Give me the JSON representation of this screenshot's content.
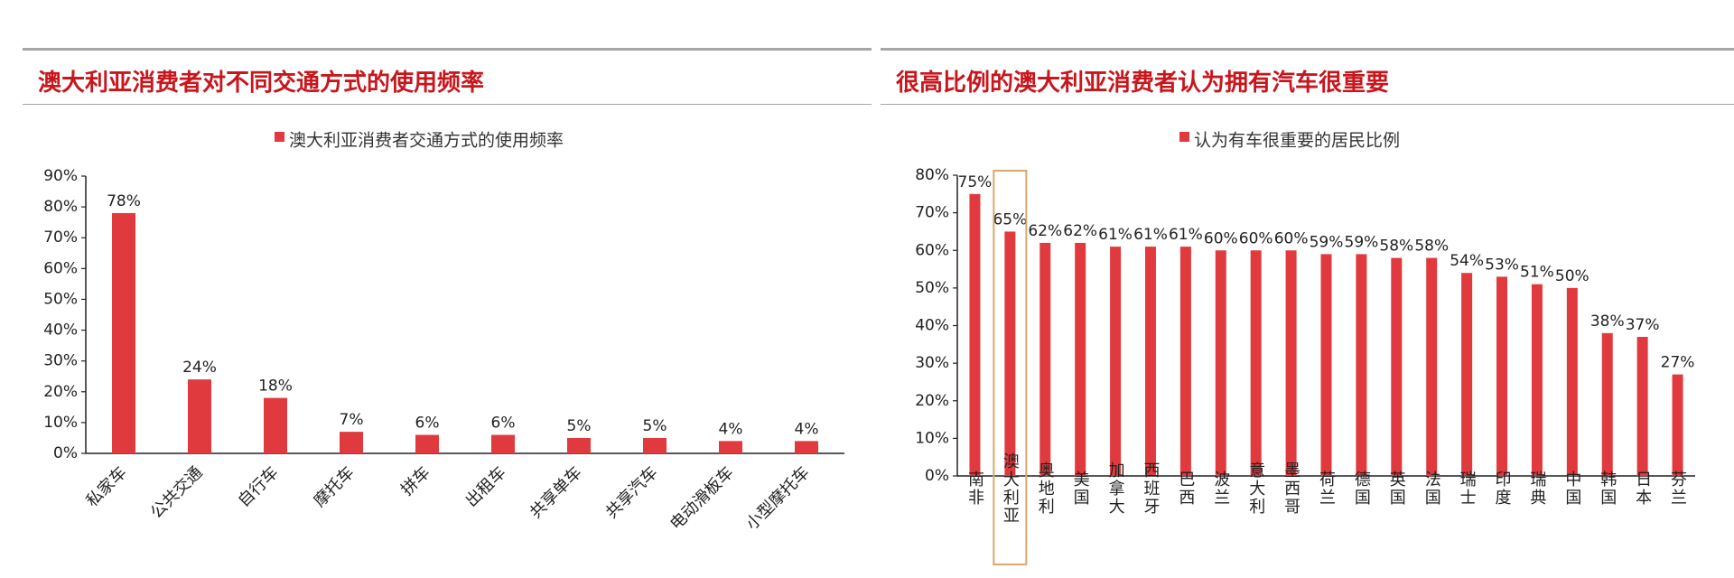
{
  "colors": {
    "accent": "#c8161d",
    "bar": "#e03a3e",
    "highlight_box": "#d9a86a",
    "rule": "#a6a6a6"
  },
  "panels": [
    {
      "title": "澳大利亚消费者对不同交通方式的使用频率"
    },
    {
      "title": "很高比例的澳大利亚消费者认为拥有汽车很重要"
    }
  ],
  "chart_data": [
    {
      "type": "bar",
      "legend": "澳大利亚消费者交通方式的使用频率",
      "categories": [
        "私家车",
        "公共交通",
        "自行车",
        "摩托车",
        "拼车",
        "出租车",
        "共享单车",
        "共享汽车",
        "电动滑板车",
        "小型摩托车"
      ],
      "series": [
        {
          "name": "澳大利亚消费者交通方式的使用频率",
          "values": [
            78,
            24,
            18,
            7,
            6,
            6,
            5,
            5,
            4,
            4
          ]
        }
      ],
      "data_labels": [
        "78%",
        "24%",
        "18%",
        "7%",
        "6%",
        "6%",
        "5%",
        "5%",
        "4%",
        "4%"
      ],
      "ylim": [
        0,
        90
      ],
      "yticks": [
        "0%",
        "10%",
        "20%",
        "30%",
        "40%",
        "50%",
        "60%",
        "70%",
        "80%",
        "90%"
      ],
      "legend_position": "top-center",
      "grid": false
    },
    {
      "type": "bar",
      "legend": "认为有车很重要的居民比例",
      "categories": [
        "南非",
        "澳大利亚",
        "奥地利",
        "美国",
        "加拿大",
        "西班牙",
        "巴西",
        "波兰",
        "意大利",
        "墨西哥",
        "荷兰",
        "德国",
        "英国",
        "法国",
        "瑞士",
        "印度",
        "瑞典",
        "中国",
        "韩国",
        "日本",
        "芬兰"
      ],
      "series": [
        {
          "name": "认为有车很重要的居民比例",
          "values": [
            75,
            65,
            62,
            62,
            61,
            61,
            61,
            60,
            60,
            60,
            59,
            59,
            58,
            58,
            54,
            53,
            51,
            50,
            38,
            37,
            27
          ]
        }
      ],
      "data_labels": [
        "75%",
        "65%",
        "62%",
        "62%",
        "61%",
        "61%",
        "61%",
        "60%",
        "60%",
        "60%",
        "59%",
        "59%",
        "58%",
        "58%",
        "54%",
        "53%",
        "51%",
        "50%",
        "38%",
        "37%",
        "27%"
      ],
      "ylim": [
        0,
        80
      ],
      "yticks": [
        "0%",
        "10%",
        "20%",
        "30%",
        "40%",
        "50%",
        "60%",
        "70%",
        "80%"
      ],
      "legend_position": "top-center",
      "highlighted_category": "澳大利亚",
      "grid": false
    }
  ]
}
